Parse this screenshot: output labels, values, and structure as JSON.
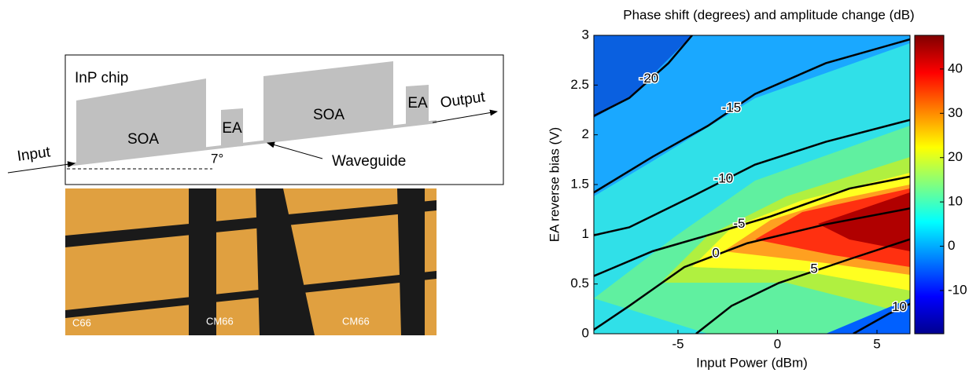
{
  "diagram": {
    "box_title": "InP chip",
    "blocks": [
      "SOA",
      "EA",
      "SOA",
      "EA"
    ],
    "input": "Input",
    "output": "Output",
    "waveguide": "Waveguide",
    "angle": "7°"
  },
  "photo": {
    "labels": [
      "C66",
      "CM66",
      "CM66"
    ]
  },
  "chart_data": {
    "type": "contour",
    "title": "Phase shift (degrees) and amplitude change (dB)",
    "x_label": "Input Power (dBm)",
    "y_label": "EA reverse bias (V)",
    "xlim": [
      -9.23,
      6.66
    ],
    "ylim": [
      0,
      3
    ],
    "xticks": [
      -5,
      0,
      5
    ],
    "yticks": [
      0,
      0.5,
      1,
      1.5,
      2,
      2.5,
      3
    ],
    "colorbar": {
      "lim": [
        -19.75,
        47.6
      ],
      "ticks": [
        -10,
        0,
        10,
        20,
        30,
        40
      ],
      "colors": [
        "#00008f",
        "#0000ff",
        "#0080ff",
        "#00ffff",
        "#80ff80",
        "#ffff00",
        "#ff8000",
        "#ff0000",
        "#800000"
      ]
    },
    "series": [
      {
        "name": "-20",
        "x": [
          -9.23,
          -7.45,
          -5.48,
          -4.29
        ],
        "y": [
          2.19,
          2.37,
          2.72,
          3.0
        ]
      },
      {
        "name": "-15",
        "x": [
          -9.23,
          -6.27,
          -3.5,
          -1.13,
          2.43,
          6.66
        ],
        "y": [
          1.42,
          1.78,
          2.09,
          2.41,
          2.72,
          2.96
        ]
      },
      {
        "name": "-10",
        "x": [
          -9.23,
          -7.45,
          -4.29,
          -1.13,
          2.43,
          6.66
        ],
        "y": [
          0.99,
          1.07,
          1.38,
          1.7,
          1.93,
          2.15
        ]
      },
      {
        "name": "-5",
        "x": [
          -9.23,
          -6.27,
          -3.5,
          -0.34,
          3.62,
          6.66
        ],
        "y": [
          0.58,
          0.83,
          0.99,
          1.18,
          1.46,
          1.58
        ]
      },
      {
        "name": "0",
        "x": [
          -9.23,
          -7.45,
          -4.68,
          -1.52,
          2.43,
          6.66
        ],
        "y": [
          0.04,
          0.28,
          0.67,
          0.91,
          1.1,
          1.26
        ]
      },
      {
        "name": "5",
        "x": [
          -4.09,
          -2.31,
          0.06,
          3.62,
          6.66
        ],
        "y": [
          0,
          0.28,
          0.51,
          0.75,
          0.95
        ]
      },
      {
        "name": "10",
        "x": [
          3.81,
          5.59,
          6.66
        ],
        "y": [
          0,
          0.2,
          0.3
        ]
      }
    ]
  }
}
